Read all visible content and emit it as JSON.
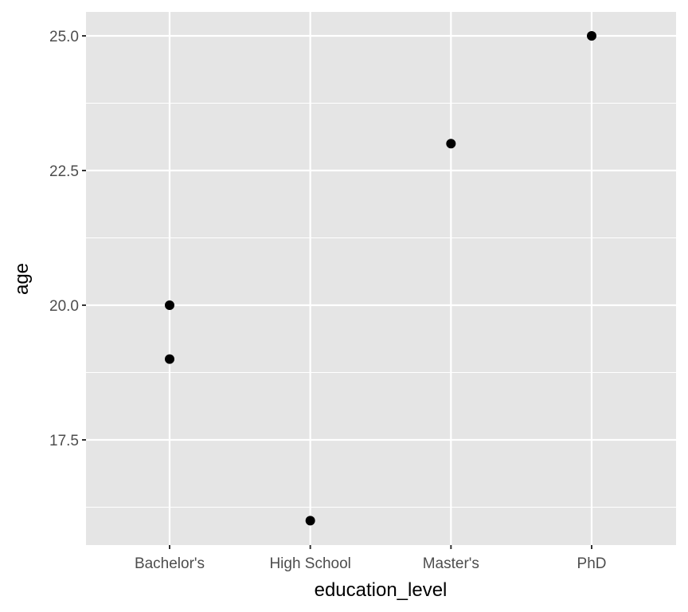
{
  "chart_data": {
    "type": "scatter",
    "title": "",
    "xlabel": "education_level",
    "ylabel": "age",
    "categories": [
      "Bachelor's",
      "High School",
      "Master's",
      "PhD"
    ],
    "points": [
      {
        "x": "Bachelor's",
        "y": 20
      },
      {
        "x": "Bachelor's",
        "y": 19
      },
      {
        "x": "High School",
        "y": 16
      },
      {
        "x": "Master's",
        "y": 23
      },
      {
        "x": "PhD",
        "y": 25
      }
    ],
    "y_ticks": [
      17.5,
      20.0,
      22.5,
      25.0
    ],
    "y_tick_labels": [
      "17.5",
      "20.0",
      "22.5",
      "25.0"
    ],
    "ylim": [
      15.55,
      25.45
    ],
    "grid": true,
    "legend": null
  },
  "colors": {
    "panel_bg": "#e5e5e5",
    "grid": "#ffffff",
    "point": "#000000",
    "tick_text": "#4d4d4d",
    "tick_mark": "#333333"
  }
}
